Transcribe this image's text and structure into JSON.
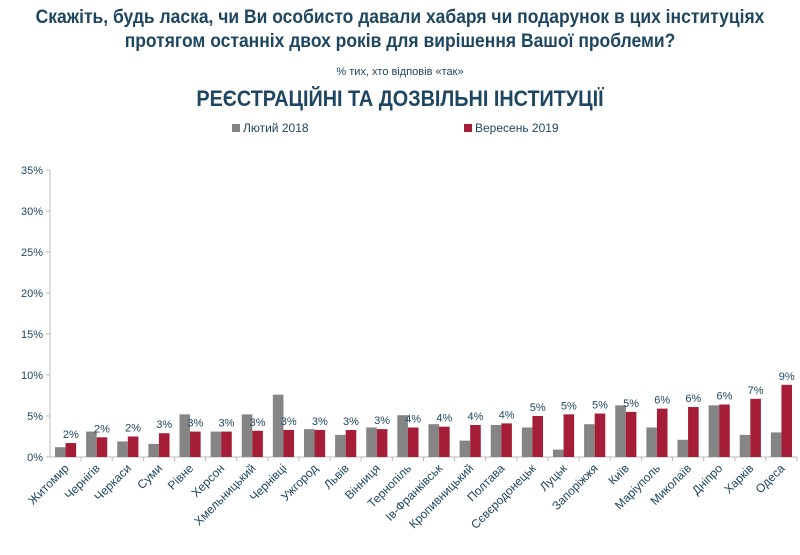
{
  "title_line1": "Скажіть, будь ласка, чи Ви особисто давали хабаря чи подарунок в цих інституціях",
  "title_line2": "протягом останніх двох років для вирішення Вашої проблеми?",
  "subtitle": "% тих, хто відповів «так»",
  "section_title": "РЕЄСТРАЦІЙНІ ТА ДОЗВІЛЬНІ ІНСТИТУЦІЇ",
  "colors": {
    "series1": "#858585",
    "series2": "#a51d36",
    "text": "#1f4660"
  },
  "chart_data": {
    "type": "bar",
    "title": "РЕЄСТРАЦІЙНІ ТА ДОЗВІЛЬНІ ІНСТИТУЦІЇ",
    "xlabel": "",
    "ylabel": "",
    "ylim": [
      0,
      35
    ],
    "yticks": [
      "0%",
      "5%",
      "10%",
      "15%",
      "20%",
      "25%",
      "30%",
      "35%"
    ],
    "ytick_values": [
      0,
      5,
      10,
      15,
      20,
      25,
      30,
      35
    ],
    "legend_position": "top",
    "grid": false,
    "categories": [
      "Житомир",
      "Чернігів",
      "Черкаси",
      "Суми",
      "Рівне",
      "Херсон",
      "Хмельницький",
      "Чернівці",
      "Ужгород",
      "Львів",
      "Вінниця",
      "Тернопіль",
      "Ів-Франківськ",
      "Кропивницький",
      "Полтава",
      "Сєвєродонецьк",
      "Луцьк",
      "Запоріжжя",
      "Київ",
      "Маріуполь",
      "Миколаїв",
      "Дніпро",
      "Харків",
      "Одеса"
    ],
    "series": [
      {
        "name": "Лютий 2018",
        "values": [
          1.2,
          3.1,
          1.9,
          1.6,
          5.2,
          3.1,
          5.2,
          7.6,
          3.4,
          2.7,
          3.6,
          5.1,
          4.0,
          2.0,
          3.9,
          3.6,
          0.9,
          4.0,
          6.3,
          3.6,
          2.1,
          6.3,
          2.7,
          3.0
        ]
      },
      {
        "name": "Вересень 2019",
        "values": [
          1.7,
          2.4,
          2.5,
          2.9,
          3.1,
          3.1,
          3.2,
          3.3,
          3.3,
          3.3,
          3.4,
          3.6,
          3.7,
          3.9,
          4.1,
          5.0,
          5.2,
          5.3,
          5.5,
          5.9,
          6.1,
          6.4,
          7.1,
          8.8
        ],
        "data_labels": [
          "2%",
          "2%",
          "2%",
          "3%",
          "3%",
          "3%",
          "3%",
          "3%",
          "3%",
          "3%",
          "3%",
          "4%",
          "4%",
          "4%",
          "4%",
          "5%",
          "5%",
          "5%",
          "5%",
          "6%",
          "6%",
          "6%",
          "7%",
          "9%"
        ]
      }
    ]
  }
}
